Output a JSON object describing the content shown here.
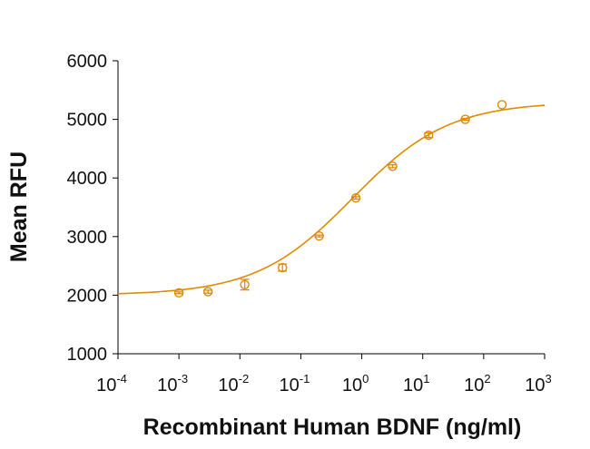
{
  "chart_data": {
    "type": "scatter",
    "title": "",
    "xlabel": "Recombinant Human BDNF (ng/ml)",
    "ylabel": "Mean RFU",
    "x_scale": "log",
    "xlim": [
      0.0001,
      1000
    ],
    "ylim": [
      1000,
      6000
    ],
    "grid": false,
    "legend": "none",
    "color": "#E08A00",
    "x_ticks": [
      {
        "base": "10",
        "exp": "-4",
        "value": 0.0001
      },
      {
        "base": "10",
        "exp": "-3",
        "value": 0.001
      },
      {
        "base": "10",
        "exp": "-2",
        "value": 0.01
      },
      {
        "base": "10",
        "exp": "-1",
        "value": 0.1
      },
      {
        "base": "10",
        "exp": "0",
        "value": 1
      },
      {
        "base": "10",
        "exp": "1",
        "value": 10
      },
      {
        "base": "10",
        "exp": "2",
        "value": 100
      },
      {
        "base": "10",
        "exp": "3",
        "value": 1000
      }
    ],
    "y_ticks": [
      "1000",
      "2000",
      "3000",
      "4000",
      "5000",
      "6000"
    ],
    "points": [
      {
        "x": 0.001,
        "y": 2040,
        "err": 15
      },
      {
        "x": 0.003,
        "y": 2060,
        "err": 25
      },
      {
        "x": 0.012,
        "y": 2180,
        "err": 90
      },
      {
        "x": 0.05,
        "y": 2470,
        "err": 60
      },
      {
        "x": 0.2,
        "y": 3010,
        "err": 15
      },
      {
        "x": 0.8,
        "y": 3660,
        "err": 20
      },
      {
        "x": 3.2,
        "y": 4200,
        "err": 25
      },
      {
        "x": 12.5,
        "y": 4730,
        "err": 40
      },
      {
        "x": 50,
        "y": 5000,
        "err": 15
      },
      {
        "x": 200,
        "y": 5250,
        "err": 0
      }
    ],
    "fit": {
      "model": "4PL",
      "bottom": 2000,
      "top": 5300,
      "ec50": 0.7,
      "hill": 0.55
    }
  }
}
